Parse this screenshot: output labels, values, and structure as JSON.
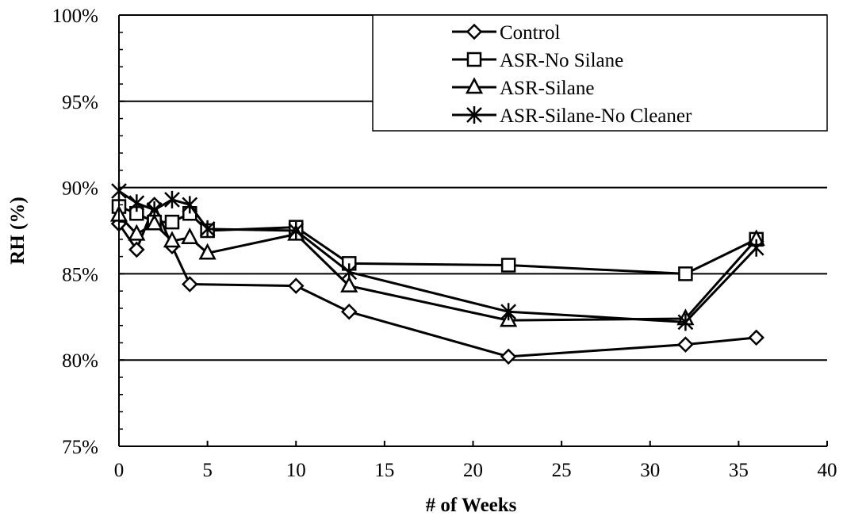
{
  "chart_data": {
    "type": "line",
    "title": "",
    "xlabel": "# of Weeks",
    "ylabel": "RH (%)",
    "xlim": [
      0,
      40
    ],
    "ylim": [
      75,
      100
    ],
    "x_ticks": [
      0,
      5,
      10,
      15,
      20,
      25,
      30,
      35,
      40
    ],
    "y_ticks": [
      75,
      80,
      85,
      90,
      95,
      100
    ],
    "y_tick_labels": [
      "75%",
      "80%",
      "85%",
      "90%",
      "95%",
      "100%"
    ],
    "gridlines": "horizontal",
    "legend_position": "top-right",
    "series": [
      {
        "name": "Control",
        "marker": "diamond",
        "x": [
          0,
          1,
          2,
          3,
          4,
          10,
          13,
          22,
          32,
          36
        ],
        "y": [
          87.9,
          86.4,
          89.0,
          86.6,
          84.4,
          84.3,
          82.8,
          80.2,
          80.9,
          81.3
        ]
      },
      {
        "name": "ASR-No Silane",
        "marker": "square",
        "x": [
          0,
          1,
          2,
          3,
          4,
          5,
          10,
          13,
          22,
          32,
          36
        ],
        "y": [
          88.9,
          88.5,
          88.0,
          88.0,
          88.5,
          87.5,
          87.7,
          85.6,
          85.5,
          85.0,
          87.0
        ]
      },
      {
        "name": "ASR-Silane",
        "marker": "triangle",
        "x": [
          0,
          1,
          2,
          3,
          4,
          5,
          10,
          13,
          22,
          32,
          36
        ],
        "y": [
          88.4,
          87.3,
          87.9,
          86.9,
          87.1,
          86.2,
          87.3,
          84.3,
          82.3,
          82.4,
          87.0
        ]
      },
      {
        "name": "ASR-Silane-No Cleaner",
        "marker": "star",
        "x": [
          0,
          1,
          2,
          3,
          4,
          5,
          10,
          13,
          22,
          32,
          36
        ],
        "y": [
          89.8,
          89.1,
          88.7,
          89.3,
          89.0,
          87.6,
          87.5,
          85.1,
          82.8,
          82.2,
          86.5
        ]
      }
    ]
  }
}
